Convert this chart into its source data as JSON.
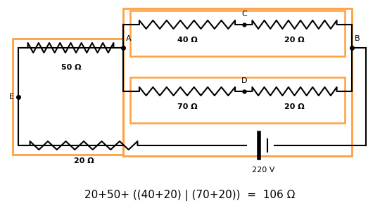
{
  "bg_color": "#ffffff",
  "orange": "#FFA040",
  "black": "#000000",
  "lw": 1.5,
  "fig_w": 5.4,
  "fig_h": 2.96,
  "dpi": 100,
  "formula": "20+50+ ((40+20) | (70+20))  =  106 Ω",
  "formula_fs": 11,
  "voltage_label": "220 V",
  "res_labels": {
    "50": "50 Ω",
    "20b": "20 Ω",
    "40": "40 Ω",
    "20c": "20 Ω",
    "70": "70 Ω",
    "20d": "20 Ω"
  },
  "nodes": {
    "A": "A",
    "B": "B",
    "C": "C",
    "D": "D",
    "E": "E"
  }
}
